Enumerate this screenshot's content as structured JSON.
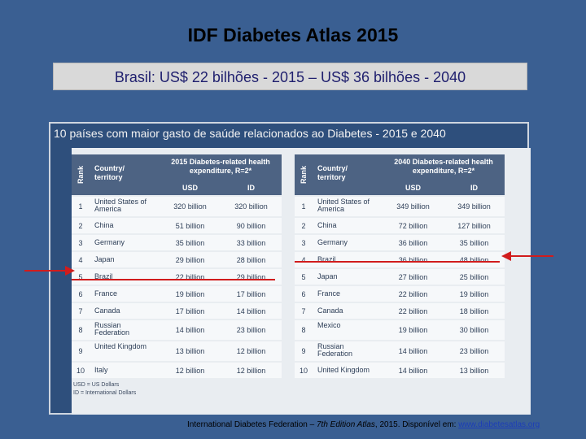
{
  "title": "IDF Diabetes Atlas 2015",
  "subtitle": "Brasil: US$ 22 bilhões - 2015 – US$ 36 bilhões - 2040",
  "panel_title": "10 países com maior gasto de saúde relacionados ao Diabetes - 2015 e 2040",
  "tables": [
    {
      "rank_header": "Rank",
      "country_header": "Country/ territory",
      "expenditure_header": "2015 Diabetes-related health expenditure, R=2*",
      "usd_header": "USD",
      "id_header": "ID",
      "rows": [
        {
          "rank": "1",
          "country": "United States of America",
          "usd": "320 billion",
          "id": "320 billion"
        },
        {
          "rank": "2",
          "country": "China",
          "usd": "51 billion",
          "id": "90 billion"
        },
        {
          "rank": "3",
          "country": "Germany",
          "usd": "35 billion",
          "id": "33 billion"
        },
        {
          "rank": "4",
          "country": "Japan",
          "usd": "29 billion",
          "id": "28 billion"
        },
        {
          "rank": "5",
          "country": "Brazil",
          "usd": "22 billion",
          "id": "29 billion"
        },
        {
          "rank": "6",
          "country": "France",
          "usd": "19 billion",
          "id": "17 billion"
        },
        {
          "rank": "7",
          "country": "Canada",
          "usd": "17 billion",
          "id": "14 billion"
        },
        {
          "rank": "8",
          "country": "Russian Federation",
          "usd": "14 billion",
          "id": "23 billion"
        },
        {
          "rank": "9",
          "country": "United Kingdom",
          "usd": "13 billion",
          "id": "12 billion"
        },
        {
          "rank": "10",
          "country": "Italy",
          "usd": "12 billion",
          "id": "12 billion"
        }
      ]
    },
    {
      "rank_header": "Rank",
      "country_header": "Country/ territory",
      "expenditure_header": "2040 Diabetes-related health expenditure, R=2*",
      "usd_header": "USD",
      "id_header": "ID",
      "rows": [
        {
          "rank": "1",
          "country": "United States of America",
          "usd": "349 billion",
          "id": "349 billion"
        },
        {
          "rank": "2",
          "country": "China",
          "usd": "72 billion",
          "id": "127 billion"
        },
        {
          "rank": "3",
          "country": "Germany",
          "usd": "36 billion",
          "id": "35 billion"
        },
        {
          "rank": "4",
          "country": "Brazil",
          "usd": "36 billion",
          "id": "48 billion"
        },
        {
          "rank": "5",
          "country": "Japan",
          "usd": "27 billion",
          "id": "25 billion"
        },
        {
          "rank": "6",
          "country": "France",
          "usd": "22 billion",
          "id": "19 billion"
        },
        {
          "rank": "7",
          "country": "Canada",
          "usd": "22 billion",
          "id": "18 billion"
        },
        {
          "rank": "8",
          "country": "Mexico",
          "usd": "19 billion",
          "id": "30 billion"
        },
        {
          "rank": "9",
          "country": "Russian Federation",
          "usd": "14 billion",
          "id": "23 billion"
        },
        {
          "rank": "10",
          "country": "United Kingdom",
          "usd": "14 billion",
          "id": "13 billion"
        }
      ]
    }
  ],
  "notes": {
    "usd": "USD = US Dollars",
    "id": "ID = International Dollars"
  },
  "footer": {
    "org": "International Diabetes Federation – ",
    "edition": "7th Edition Atlas",
    "rest": ", 2015. Disponível em: ",
    "link": "www.diabetesatlas.org"
  },
  "colors": {
    "background": "#3a5f92",
    "highlight_red": "#d11c1c"
  }
}
